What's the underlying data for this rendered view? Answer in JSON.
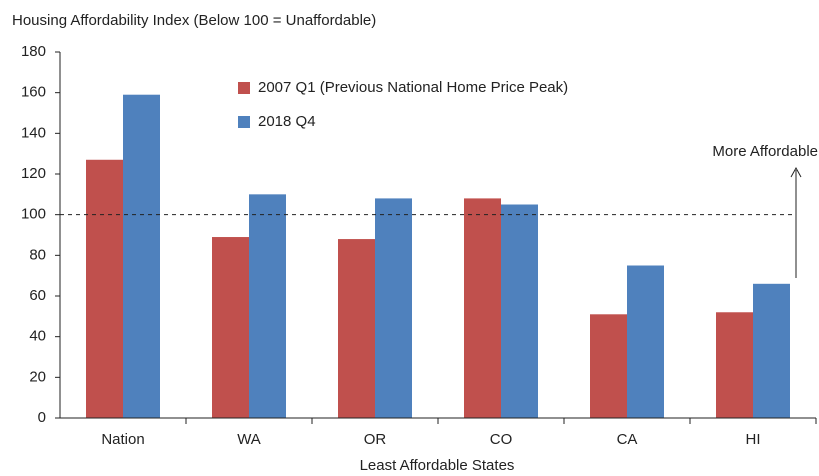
{
  "chart_data": {
    "type": "bar",
    "title": "Housing Affordability Index (Below 100 = Unaffordable)",
    "x_label": "Least Affordable States",
    "categories": [
      "Nation",
      "WA",
      "OR",
      "CO",
      "CA",
      "HI"
    ],
    "series": [
      {
        "name": "2007 Q1 (Previous National Home Price Peak)",
        "color": "#c0504d",
        "values": [
          127,
          89,
          88,
          108,
          51,
          52
        ]
      },
      {
        "name": "2018 Q4",
        "color": "#4f81bd",
        "values": [
          159,
          110,
          108,
          105,
          75,
          66
        ]
      }
    ],
    "ylim": [
      0,
      180
    ],
    "yticks": [
      0,
      20,
      40,
      60,
      80,
      100,
      120,
      140,
      160,
      180
    ],
    "reference_line": 100,
    "annotation": "More Affordable"
  }
}
